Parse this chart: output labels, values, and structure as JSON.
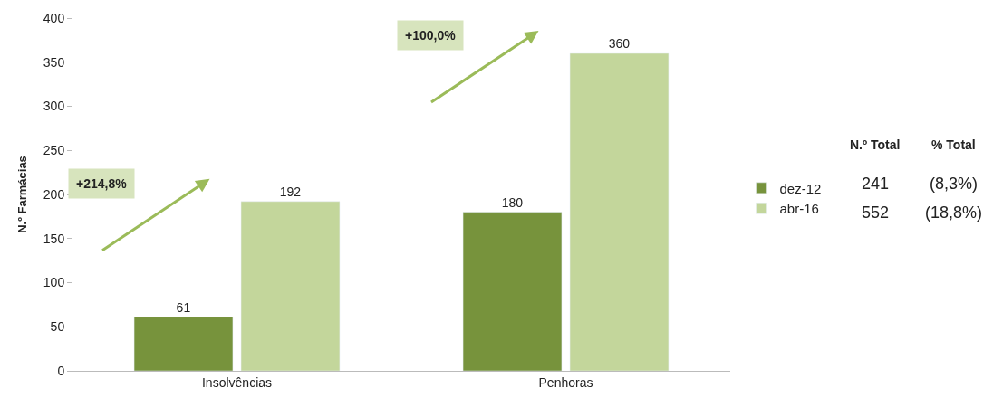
{
  "chart_data": {
    "type": "bar",
    "ylabel": "N.º Farmácias",
    "categories": [
      "Insolvências",
      "Penhoras"
    ],
    "series": [
      {
        "name": "dez-12",
        "color": "#77933c",
        "values": [
          61,
          180
        ]
      },
      {
        "name": "abr-16",
        "color": "#c3d69b",
        "values": [
          192,
          360
        ]
      }
    ],
    "ylim": [
      0,
      400
    ],
    "yticks": [
      0,
      50,
      100,
      150,
      200,
      250,
      300,
      350,
      400
    ],
    "data_labels": true,
    "legend": "right",
    "annotations": [
      "+214,8%",
      "+100,0%",
      "N.º Total",
      "% Total",
      "241",
      "(8,3%)",
      "552",
      "(18,8%)"
    ]
  }
}
